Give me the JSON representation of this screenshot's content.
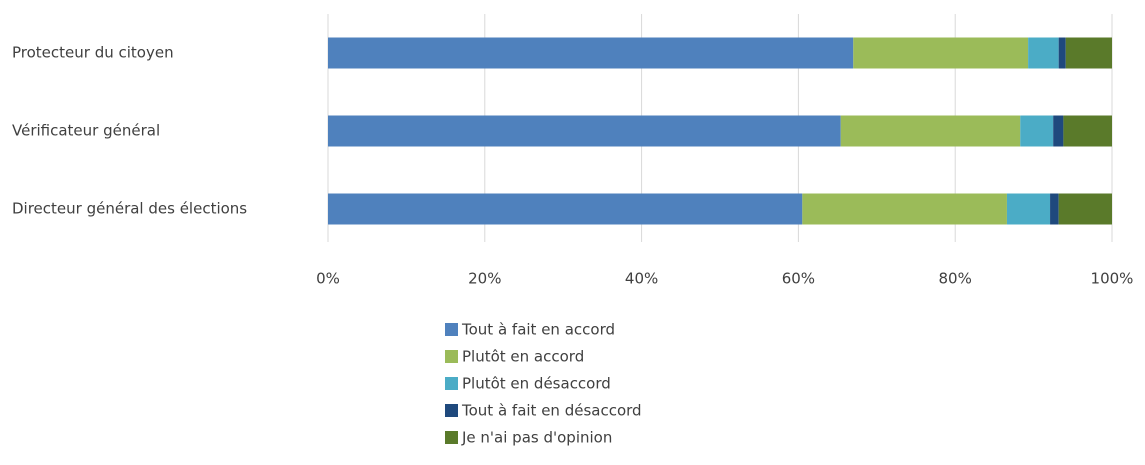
{
  "chart_data": {
    "type": "stacked-barh",
    "categories": [
      "Protecteur du citoyen",
      "Vérificateur général",
      "Directeur général des élections"
    ],
    "series": [
      {
        "name": "Tout à fait en accord",
        "color": "#4f81bd",
        "values": [
          67.0,
          65.4,
          60.5
        ]
      },
      {
        "name": "Plutôt en accord",
        "color": "#9bbb59",
        "values": [
          22.3,
          22.9,
          26.1
        ]
      },
      {
        "name": "Plutôt en désaccord",
        "color": "#4bacc6",
        "values": [
          3.9,
          4.2,
          5.5
        ]
      },
      {
        "name": "Tout à fait en désaccord",
        "color": "#1f497d",
        "values": [
          0.9,
          1.3,
          1.1
        ]
      },
      {
        "name": "Je n'ai pas d'opinion",
        "color": "#5a7a2a",
        "values": [
          5.9,
          6.2,
          6.8
        ]
      }
    ],
    "xlim": [
      0,
      100
    ],
    "xticks": [
      {
        "value": 0,
        "label": "0%"
      },
      {
        "value": 20,
        "label": "20%"
      },
      {
        "value": 40,
        "label": "40%"
      },
      {
        "value": 60,
        "label": "60%"
      },
      {
        "value": 80,
        "label": "80%"
      },
      {
        "value": 100,
        "label": "100%"
      }
    ],
    "grid": true
  }
}
